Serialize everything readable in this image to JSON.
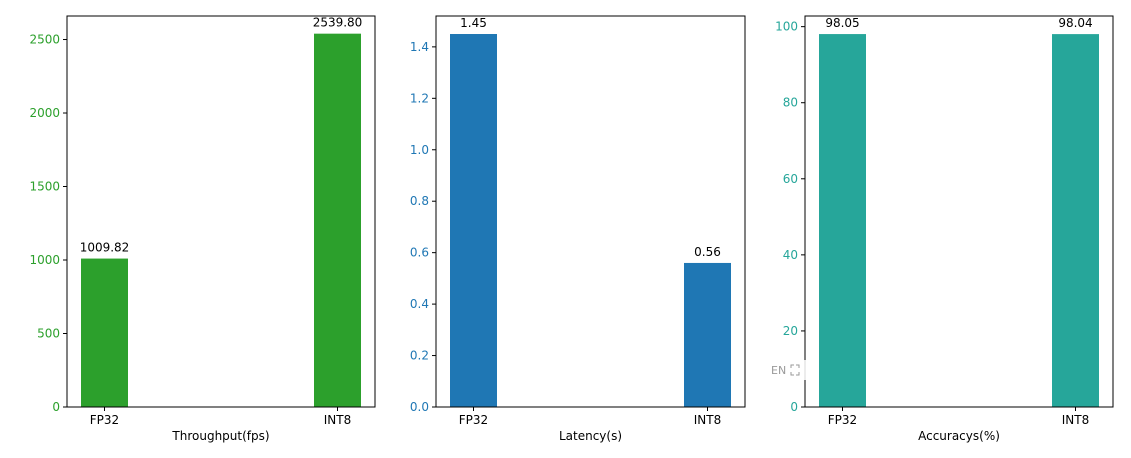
{
  "chart_data": [
    {
      "type": "bar",
      "categories": [
        "FP32",
        "INT8"
      ],
      "values": [
        1009.82,
        2539.8
      ],
      "value_labels": [
        "1009.82",
        "2539.80"
      ],
      "xlabel": "Throughput(fps)",
      "ylabel": "",
      "ylim": [
        0,
        2660
      ],
      "yticks": [
        0,
        500,
        1000,
        1500,
        2000,
        2500
      ],
      "ytick_labels": [
        "0",
        "500",
        "1000",
        "1500",
        "2000",
        "2500"
      ],
      "bar_color": "#2ca02c",
      "tick_color": "#2ca02c",
      "grid": false
    },
    {
      "type": "bar",
      "categories": [
        "FP32",
        "INT8"
      ],
      "values": [
        1.45,
        0.56
      ],
      "value_labels": [
        "1.45",
        "0.56"
      ],
      "xlabel": "Latency(s)",
      "ylabel": "",
      "ylim": [
        0,
        1.52
      ],
      "yticks": [
        0.0,
        0.2,
        0.4,
        0.6,
        0.8,
        1.0,
        1.2,
        1.4
      ],
      "ytick_labels": [
        "0.0",
        "0.2",
        "0.4",
        "0.6",
        "0.8",
        "1.0",
        "1.2",
        "1.4"
      ],
      "bar_color": "#1f77b4",
      "tick_color": "#1f77b4",
      "grid": false
    },
    {
      "type": "bar",
      "categories": [
        "FP32",
        "INT8"
      ],
      "values": [
        98.05,
        98.04
      ],
      "value_labels": [
        "98.05",
        "98.04"
      ],
      "xlabel": "Accuracys(%)",
      "ylabel": "",
      "ylim": [
        0,
        102.8
      ],
      "yticks": [
        0,
        20,
        40,
        60,
        80,
        100
      ],
      "ytick_labels": [
        "0",
        "20",
        "40",
        "60",
        "80",
        "100"
      ],
      "bar_color": "#26a69a",
      "tick_color": "#26a69a",
      "grid": false
    }
  ],
  "overlay": {
    "ime_label": "EN",
    "expand_icon": "expand-icon"
  }
}
